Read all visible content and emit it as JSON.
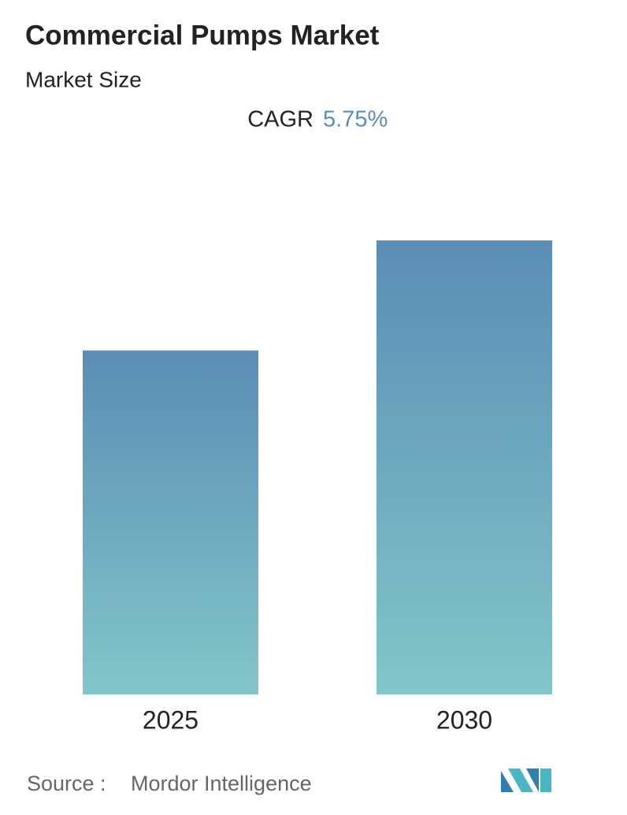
{
  "chart_data": {
    "type": "bar",
    "title": "Commercial Pumps Market",
    "subtitle": "Market Size",
    "cagr": {
      "label": "CAGR",
      "value": "5.75%"
    },
    "categories": [
      "2025",
      "2030"
    ],
    "values": [
      100,
      132
    ],
    "color": {
      "top": "#5b8db5",
      "bottom": "#82c6c9"
    },
    "source": {
      "label": "Source :",
      "value": "Mordor Intelligence"
    }
  }
}
